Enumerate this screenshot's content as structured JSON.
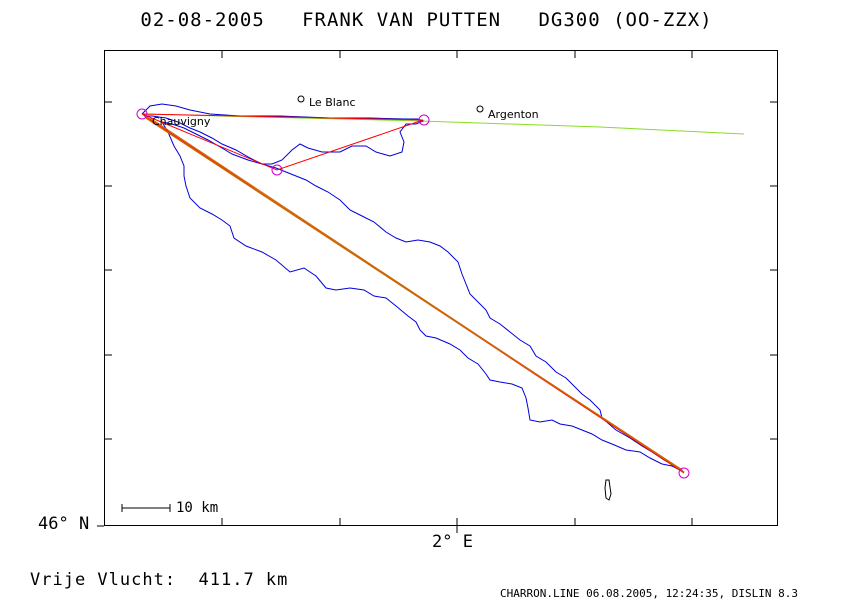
{
  "title": "02-08-2005   FRANK VAN PUTTEN   DG300 (OO-ZZX)",
  "axes": {
    "lat_label": "46° N",
    "lon_label": "2° E"
  },
  "towns": [
    {
      "name": "Le Blanc"
    },
    {
      "name": "Argenton"
    },
    {
      "name": "Chauvigny"
    }
  ],
  "scale_bar": {
    "label": "10 km"
  },
  "free_flight": "Vrije Vlucht:  411.7 km",
  "footer": "CHARRON.LINE 06.08.2005, 12:24:35, DISLIN 8.3",
  "colors": {
    "track": "#0000dd",
    "task_leg": "#ff0000",
    "free_flight_leg": "#cc6600",
    "start_line": "#88dd22",
    "turnpoint": "#cc00cc"
  }
}
